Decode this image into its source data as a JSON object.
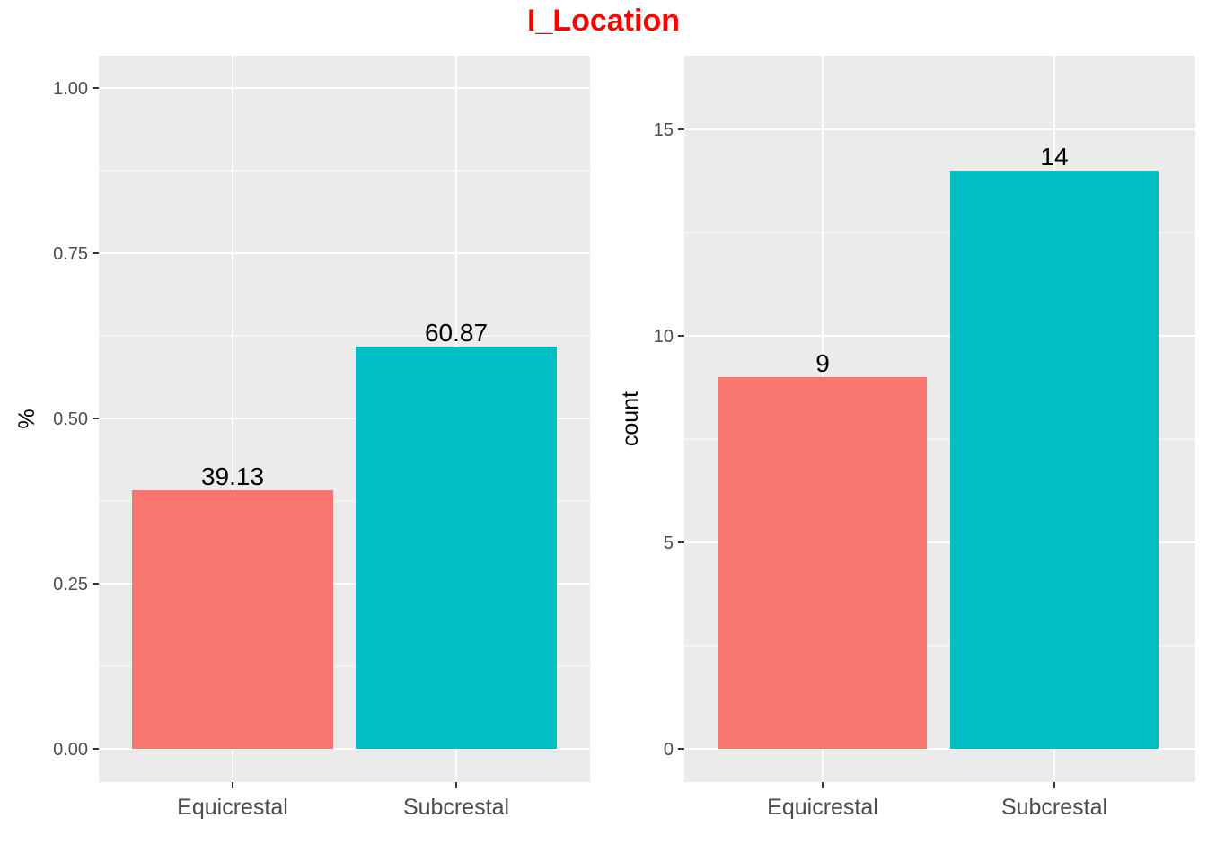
{
  "title": "I_Location",
  "colors": {
    "title": "#ff0000",
    "panel_bg": "#ebebeb",
    "grid": "#ffffff",
    "tick": "#333333"
  },
  "chart_data": [
    {
      "type": "bar",
      "categories": [
        "Equicrestal",
        "Subcrestal"
      ],
      "values": [
        0.3913,
        0.6087
      ],
      "data_labels": [
        "39.13",
        "60.87"
      ],
      "colors": [
        "#f8766d",
        "#00bfc4"
      ],
      "ylabel": "%",
      "xlabel": "",
      "ylim": [
        0,
        1.0
      ],
      "yticks": [
        0,
        0.25,
        0.5,
        0.75,
        1.0
      ],
      "ytick_labels": [
        "0.00",
        "0.25",
        "0.50",
        "0.75",
        "1.00"
      ],
      "grid": true
    },
    {
      "type": "bar",
      "categories": [
        "Equicrestal",
        "Subcrestal"
      ],
      "values": [
        9,
        14
      ],
      "data_labels": [
        "9",
        "14"
      ],
      "colors": [
        "#f8766d",
        "#00bfc4"
      ],
      "ylabel": "count",
      "xlabel": "",
      "ylim": [
        0,
        15
      ],
      "yticks": [
        0,
        5,
        10,
        15
      ],
      "ytick_labels": [
        "0",
        "5",
        "10",
        "15"
      ],
      "grid": true
    }
  ]
}
